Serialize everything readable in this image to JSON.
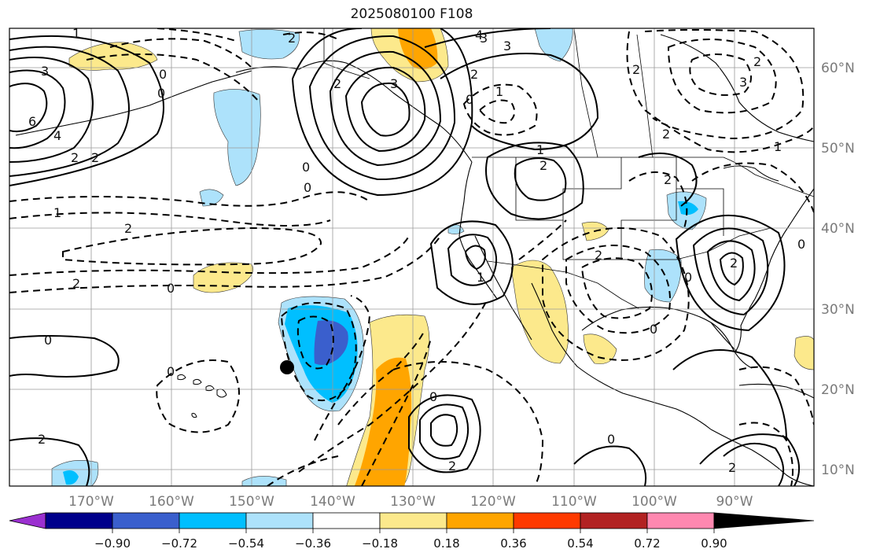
{
  "title": "2025080100 F108",
  "lon_labels": [
    "170°W",
    "160°W",
    "150°W",
    "140°W",
    "130°W",
    "120°W",
    "110°W",
    "100°W",
    "90°W"
  ],
  "lat_labels": [
    "60°N",
    "50°N",
    "40°N",
    "30°N",
    "20°N",
    "10°N"
  ],
  "colorbar": {
    "tick_labels": [
      "−0.90",
      "−0.72",
      "−0.54",
      "−0.36",
      "−0.18",
      "0.18",
      "0.36",
      "0.54",
      "0.72",
      "0.90"
    ],
    "colors": [
      "#9b30d0",
      "#00008b",
      "#3a5fcd",
      "#00bfff",
      "#ade2fb",
      "#ffffff",
      "#fce98c",
      "#ffa500",
      "#ff3a00",
      "#b22222",
      "#ff88b0"
    ]
  },
  "contour_labels": {
    "c1": "1",
    "c2": "2",
    "c3": "3",
    "c4": "0",
    "c5": "3",
    "c6": "6",
    "c7": "4",
    "c8": "2",
    "c9": "2",
    "c10": "0",
    "c11": "0",
    "c12": "1",
    "c13": "2",
    "c14": "2",
    "c15": "0",
    "c16": "0",
    "c17": "2",
    "c18": "0",
    "c19": "2",
    "c20": "0",
    "c21": "0",
    "c22": "1",
    "c23": "1",
    "c24": "2",
    "c25": "4",
    "c26": "3",
    "c27": "3",
    "c28": "2",
    "c29": "2",
    "c30": "2",
    "c31": "3",
    "c32": "2",
    "c33": "1",
    "c34": "2",
    "c35": "0",
    "c36": "2",
    "c37": "0",
    "c38": "0",
    "c39": "2",
    "c40": "0",
    "c41": "2",
    "c42": "0",
    "c43": "2",
    "c44": "1"
  }
}
